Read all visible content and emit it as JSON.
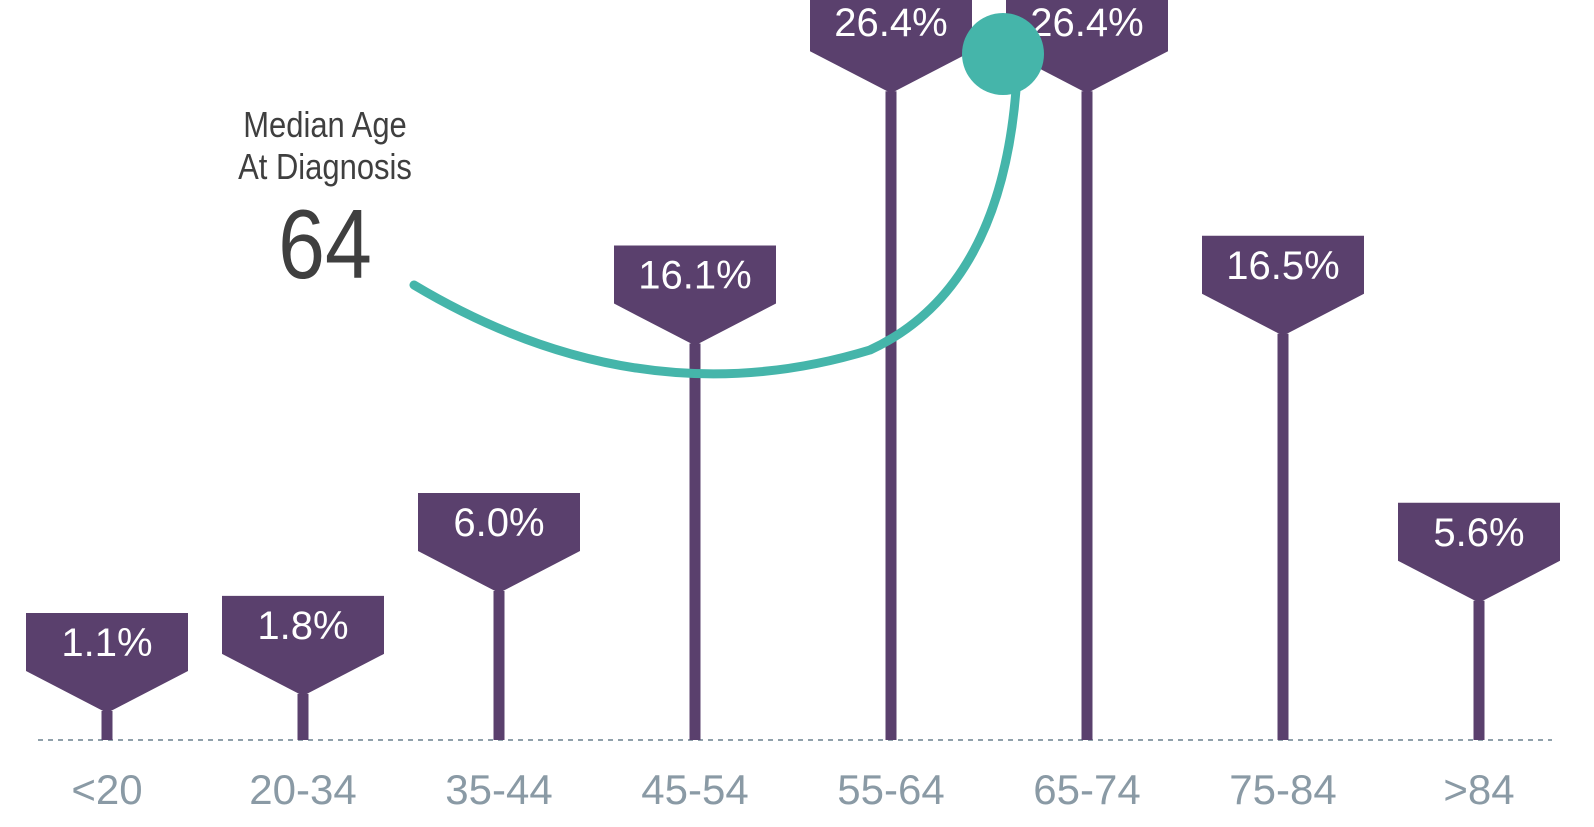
{
  "median": {
    "label_line1": "Median Age",
    "label_line2": "At Diagnosis",
    "value": "64"
  },
  "colors": {
    "marker": "#5a406d",
    "axis_label": "#8a9aa5",
    "baseline": "#8fa0aa",
    "accent": "#45b5aa",
    "text_dark": "#3f3f3f"
  },
  "chart_data": {
    "type": "bar",
    "title": "",
    "xlabel": "",
    "ylabel": "",
    "categories": [
      "<20",
      "20-34",
      "35-44",
      "45-54",
      "55-64",
      "65-74",
      "75-84",
      ">84"
    ],
    "values": [
      1.1,
      1.8,
      6.0,
      16.1,
      26.4,
      26.4,
      16.5,
      5.6
    ],
    "value_labels": [
      "1.1%",
      "1.8%",
      "6.0%",
      "16.1%",
      "26.4%",
      "26.4%",
      "16.5%",
      "5.6%"
    ],
    "grid": false,
    "marker_style": "pin"
  }
}
